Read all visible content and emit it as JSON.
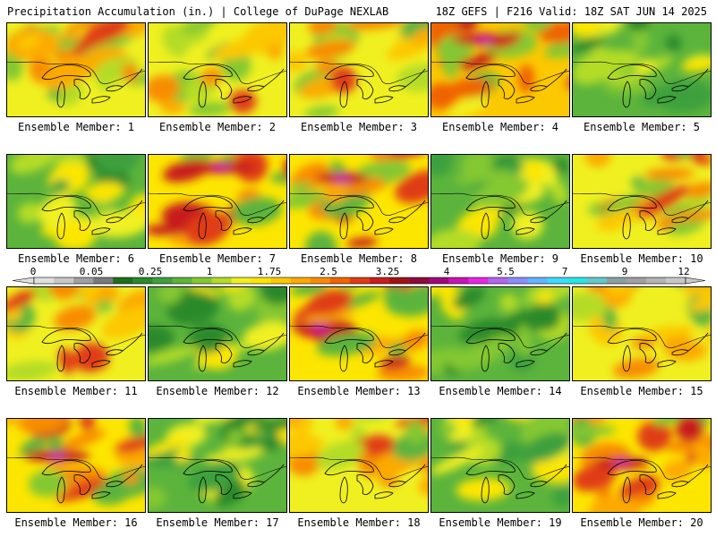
{
  "header": {
    "title_left": "Precipitation Accumulation (in.) | College of DuPage NEXLAB",
    "title_right": "18Z GEFS | F216 Valid: 18Z SAT JUN 14 2025"
  },
  "colorbar": {
    "labels": [
      "0",
      "0.05",
      "0.25",
      "1",
      "1.75",
      "2.5",
      "3.25",
      "4",
      "5.5",
      "7",
      "9",
      "12"
    ],
    "colors": [
      "#e0e0e0",
      "#c8c8c8",
      "#a0a0a0",
      "#7a7a7a",
      "#1e6e1e",
      "#2a8a2a",
      "#3ca03c",
      "#5cb43c",
      "#84c830",
      "#b4dc28",
      "#f0f020",
      "#fce600",
      "#fcc800",
      "#fcaa00",
      "#f88c00",
      "#f06400",
      "#e03c14",
      "#c81e1e",
      "#a01414",
      "#8c0a3c",
      "#a00a78",
      "#c814b4",
      "#e628e6",
      "#b464f0",
      "#8c8cff",
      "#64b4ff",
      "#3cdcff",
      "#28e6e6",
      "#64c8c8",
      "#8ca0a0",
      "#a0a0a0",
      "#b4b4b4",
      "#c8c8c8"
    ]
  },
  "panels": [
    {
      "label": "Ensemble Member: 1",
      "style": 1
    },
    {
      "label": "Ensemble Member: 2",
      "style": 1
    },
    {
      "label": "Ensemble Member: 3",
      "style": 1
    },
    {
      "label": "Ensemble Member: 4",
      "style": 3
    },
    {
      "label": "Ensemble Member: 5",
      "style": 0
    },
    {
      "label": "Ensemble Member: 6",
      "style": 0
    },
    {
      "label": "Ensemble Member: 7",
      "style": 2
    },
    {
      "label": "Ensemble Member: 8",
      "style": 2
    },
    {
      "label": "Ensemble Member: 9",
      "style": 0
    },
    {
      "label": "Ensemble Member: 10",
      "style": 1
    },
    {
      "label": "Ensemble Member: 11",
      "style": 1
    },
    {
      "label": "Ensemble Member: 12",
      "style": 0
    },
    {
      "label": "Ensemble Member: 13",
      "style": 2
    },
    {
      "label": "Ensemble Member: 14",
      "style": 0
    },
    {
      "label": "Ensemble Member: 15",
      "style": 1
    },
    {
      "label": "Ensemble Member: 16",
      "style": 2
    },
    {
      "label": "Ensemble Member: 17",
      "style": 0
    },
    {
      "label": "Ensemble Member: 18",
      "style": 1
    },
    {
      "label": "Ensemble Member: 19",
      "style": 0
    },
    {
      "label": "Ensemble Member: 20",
      "style": 2
    }
  ]
}
